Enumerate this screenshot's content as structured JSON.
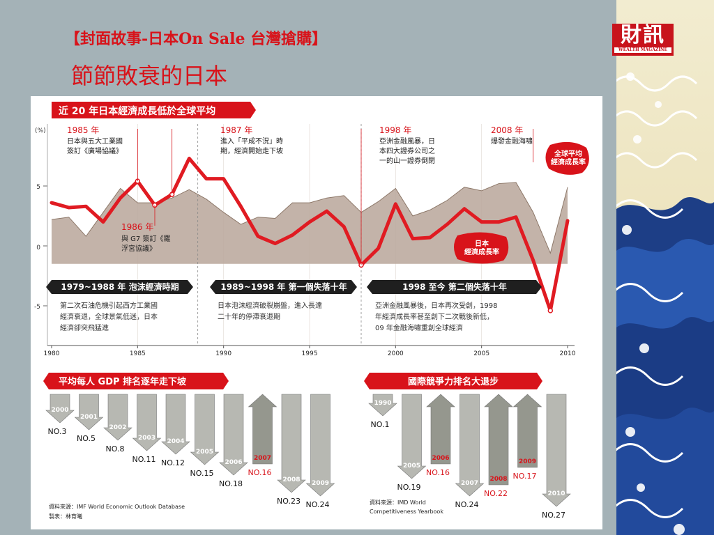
{
  "slide": {
    "title_line1": "【封面故事-日本On Sale  台灣搶購】",
    "title_line2": "節節敗衰的日本"
  },
  "logo": {
    "main": "財訊",
    "sub": "WEALTH MAGAZINE"
  },
  "colors": {
    "accent_red": "#d8131a",
    "world_area": "#b9a69a",
    "japan_line": "#e01b22",
    "banner_dark": "#1f1f1f",
    "arrow_grey": "#8f8f8a",
    "background": "#a4b2b7"
  },
  "chart_data": [
    {
      "type": "area",
      "title": "近 20 年日本經濟成長低於全球平均",
      "ylabel": "(%)",
      "yticks": [
        "5",
        "0",
        "-5"
      ],
      "ylim": [
        -7,
        9
      ],
      "xlim": [
        1980,
        2010
      ],
      "xticks": [
        "1980",
        "1985",
        "1990",
        "1995",
        "2000",
        "2005",
        "2010"
      ],
      "x": [
        1980,
        1981,
        1982,
        1983,
        1984,
        1985,
        1986,
        1987,
        1988,
        1989,
        1990,
        1991,
        1992,
        1993,
        1994,
        1995,
        1996,
        1997,
        1998,
        1999,
        2000,
        2001,
        2002,
        2003,
        2004,
        2005,
        2006,
        2007,
        2008,
        2009,
        2010
      ],
      "series": [
        {
          "name": "全球平均經濟成長率",
          "values": [
            2.2,
            2.4,
            0.8,
            2.8,
            4.8,
            3.6,
            3.6,
            4.0,
            4.7,
            3.9,
            2.8,
            1.8,
            2.4,
            2.3,
            3.6,
            3.6,
            4.0,
            4.2,
            2.8,
            3.7,
            4.8,
            2.5,
            3.0,
            3.8,
            4.9,
            4.6,
            5.2,
            5.3,
            2.8,
            -0.6,
            4.9
          ]
        },
        {
          "name": "日本經濟成長率",
          "values": [
            3.6,
            3.2,
            3.3,
            2.0,
            4.0,
            5.4,
            3.4,
            4.3,
            7.3,
            5.6,
            5.6,
            3.3,
            0.8,
            0.2,
            0.9,
            2.0,
            2.9,
            1.6,
            -1.6,
            -0.2,
            3.5,
            0.6,
            0.7,
            1.8,
            3.1,
            2.0,
            2.0,
            2.4,
            -1.2,
            -5.4,
            2.1
          ]
        }
      ],
      "series_labels": [
        "全球平均\n經濟成長率",
        "日本\n經濟成長率"
      ],
      "annotations": [
        {
          "year": "1985 年",
          "text": "日本與五大工業國\n簽訂《廣場協議》"
        },
        {
          "year": "1986 年",
          "text": "與 G7 簽訂《羅\n浮宮協議》"
        },
        {
          "year": "1987 年",
          "text": "進入「平成不況」時\n期，經濟開始走下坡"
        },
        {
          "year": "1998 年",
          "text": "亞洲金融風暴，日\n本四大證券公司之\n一的山一證券倒閉"
        },
        {
          "year": "2008 年",
          "text": "爆發金融海嘯"
        }
      ],
      "periods": [
        {
          "label": "1979~1988 年 泡沫經濟時期",
          "text": "第二次石油危機引起西方工業國\n經濟衰退，全球景氣低迷，日本\n經濟卻突飛猛進"
        },
        {
          "label": "1989~1998 年 第一個失落十年",
          "text": "日本泡沫經濟破裂崩盤，進入長達\n二十年的停滯衰退期"
        },
        {
          "label": "1998 至今 第二個失落十年",
          "text": "亞洲金融風暴後，日本再次受創，1998\n年經濟成長率甚至創下二次戰後新低，\n09 年金融海嘯重創全球經濟"
        }
      ]
    },
    {
      "type": "bar",
      "title": "平均每人 GDP 排名逐年走下坡",
      "categories": [
        "2000",
        "2001",
        "2002",
        "2003",
        "2004",
        "2005",
        "2006",
        "2007",
        "2008",
        "2009"
      ],
      "values": [
        3,
        5,
        8,
        11,
        12,
        15,
        18,
        16,
        23,
        24
      ],
      "labels": [
        "NO.3",
        "NO.5",
        "NO.8",
        "NO.11",
        "NO.12",
        "NO.15",
        "NO.18",
        "NO.16",
        "NO.23",
        "NO.24"
      ],
      "source": "資料來源：IMF World Economic Outlook Database",
      "maker": "製表：林育曦"
    },
    {
      "type": "bar",
      "title": "國際競爭力排名大退步",
      "categories": [
        "1990",
        "2005",
        "2006",
        "2007",
        "2008",
        "2009",
        "2010"
      ],
      "values": [
        1,
        19,
        16,
        24,
        22,
        17,
        27
      ],
      "labels": [
        "NO.1",
        "NO.19",
        "NO.16",
        "NO.24",
        "NO.22",
        "NO.17",
        "NO.27"
      ],
      "source": "資料來源：IMD World\nCompetitiveness Yearbook"
    }
  ]
}
